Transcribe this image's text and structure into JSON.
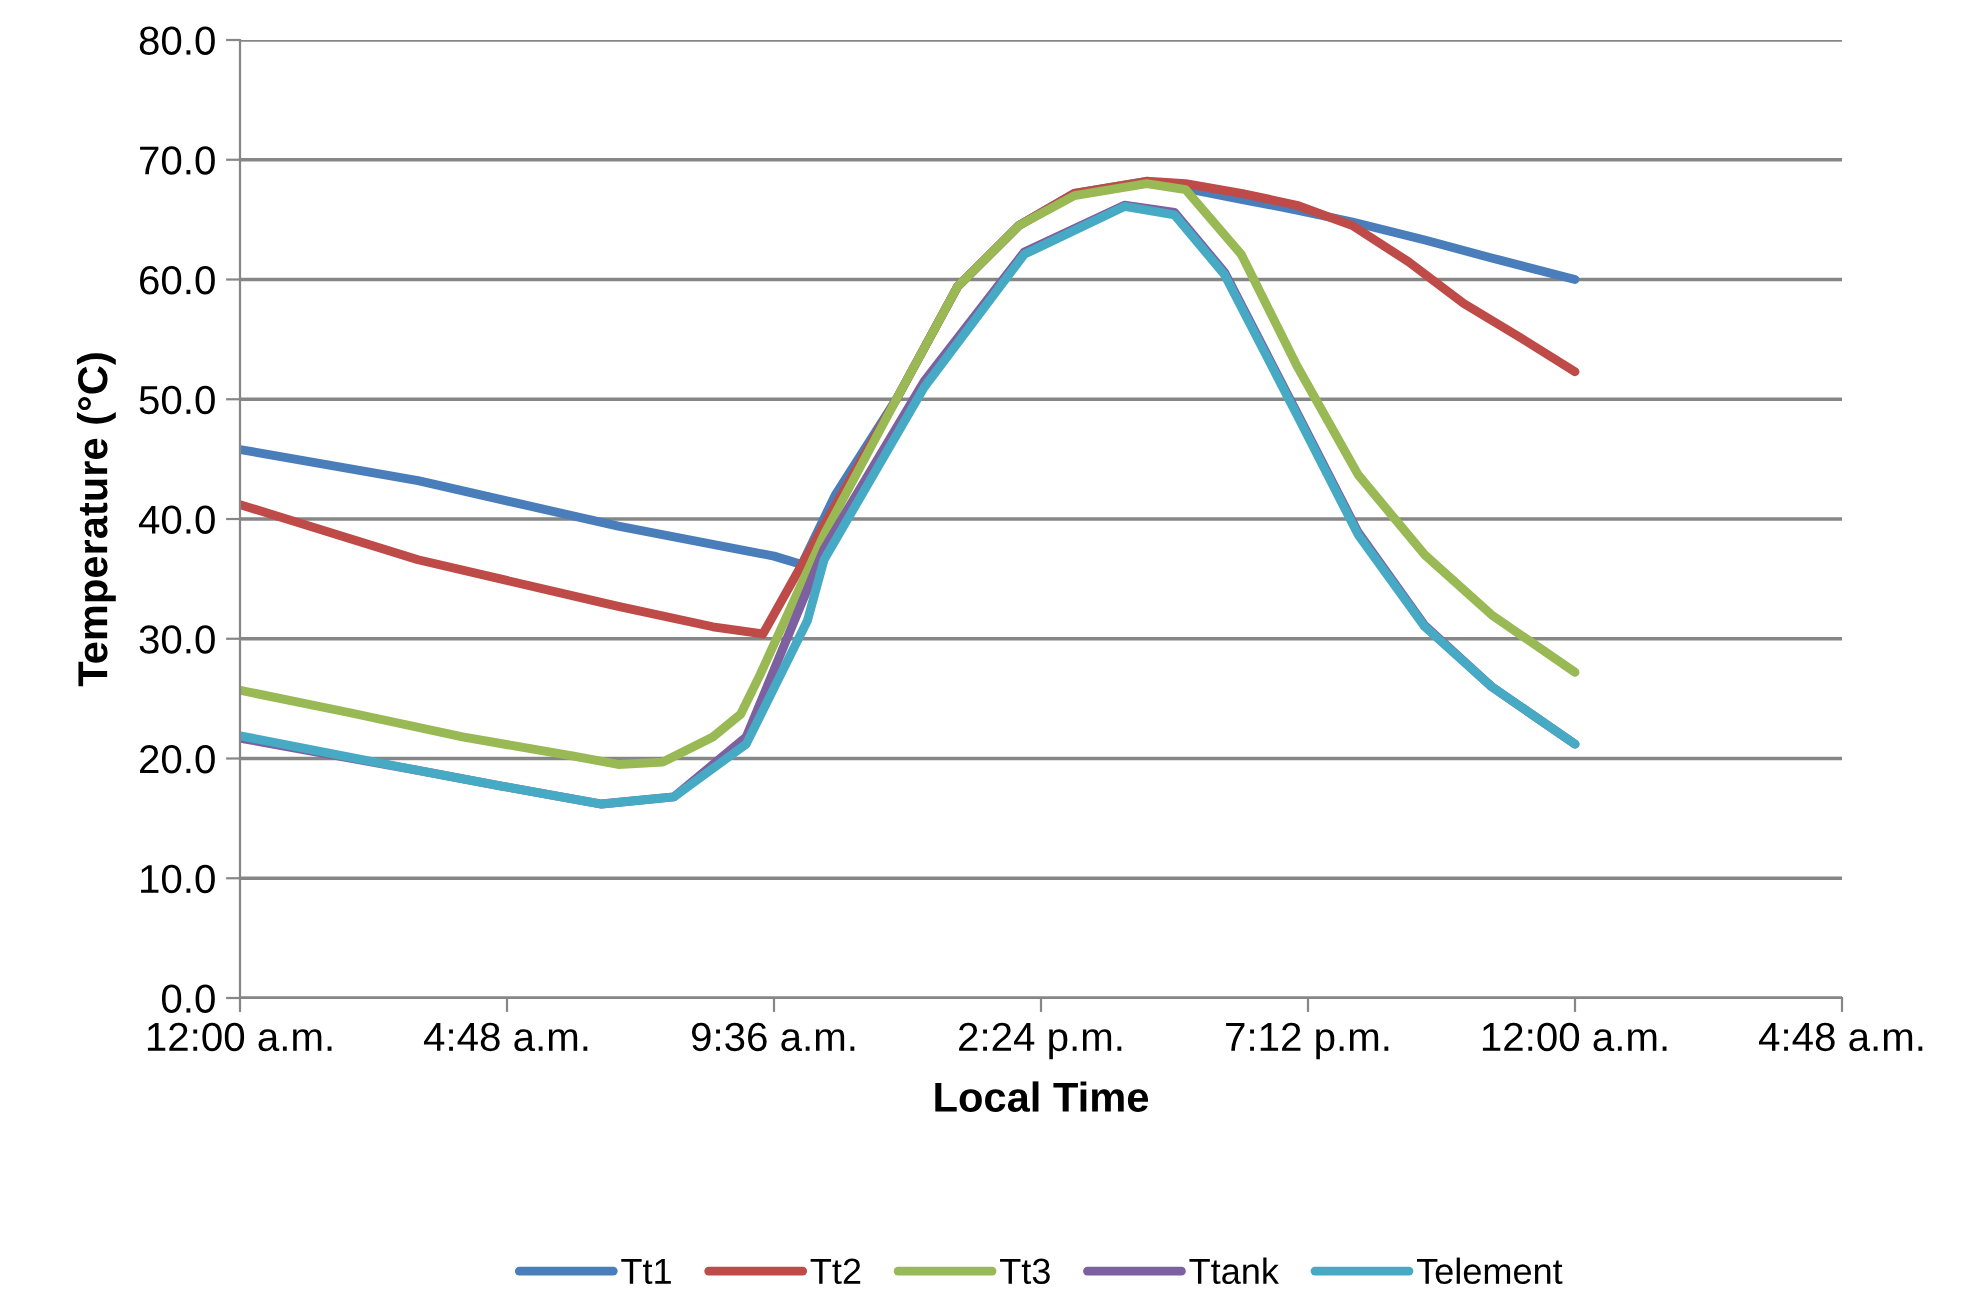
{
  "chart_data": {
    "type": "line",
    "xlabel": "Local Time",
    "ylabel": "Temperature (°C)",
    "xlim": [
      "2000-01-01T00:00",
      "2000-01-02T04:48"
    ],
    "ylim": [
      0,
      80
    ],
    "xticks": [
      {
        "value": "2000-01-01T00:00",
        "label": "12:00 a.m."
      },
      {
        "value": "2000-01-01T04:48",
        "label": "4:48 a.m."
      },
      {
        "value": "2000-01-01T09:36",
        "label": "9:36 a.m."
      },
      {
        "value": "2000-01-01T14:24",
        "label": "2:24 p.m."
      },
      {
        "value": "2000-01-01T19:12",
        "label": "7:12 p.m."
      },
      {
        "value": "2000-01-02T00:00",
        "label": "12:00 a.m."
      },
      {
        "value": "2000-01-02T04:48",
        "label": "4:48 a.m."
      }
    ],
    "yticks": [
      {
        "value": 0,
        "label": "0.0"
      },
      {
        "value": 10,
        "label": "10.0"
      },
      {
        "value": 20,
        "label": "20.0"
      },
      {
        "value": 30,
        "label": "30.0"
      },
      {
        "value": 40,
        "label": "40.0"
      },
      {
        "value": 50,
        "label": "50.0"
      },
      {
        "value": 60,
        "label": "60.0"
      },
      {
        "value": 70,
        "label": "70.0"
      },
      {
        "value": 80,
        "label": "80.0"
      }
    ],
    "grid": "y",
    "legend": "bottom",
    "marker": "none",
    "line_style": "solid",
    "series": [
      {
        "name": "Tt1",
        "color": "#4a7ebb",
        "x": [
          "2000-01-01T00:00",
          "2000-01-01T03:12",
          "2000-01-01T06:48",
          "2000-01-01T09:36",
          "2000-01-01T10:06",
          "2000-01-01T10:42",
          "2000-01-01T11:48",
          "2000-01-01T12:54",
          "2000-01-01T14:00",
          "2000-01-01T15:00",
          "2000-01-01T16:18",
          "2000-01-01T17:00",
          "2000-01-01T18:00",
          "2000-01-01T19:00",
          "2000-01-01T20:00",
          "2000-01-01T21:18",
          "2000-01-01T22:30",
          "2000-01-02T00:00"
        ],
        "values": [
          45.8,
          43.2,
          39.4,
          36.9,
          36.2,
          42,
          50,
          59.4,
          64.5,
          67.2,
          68.2,
          67.6,
          66.7,
          65.8,
          64.8,
          63.3,
          61.8,
          60
        ]
      },
      {
        "name": "Tt2",
        "color": "#be4b48",
        "x": [
          "2000-01-01T00:00",
          "2000-01-01T03:12",
          "2000-01-01T06:48",
          "2000-01-01T08:30",
          "2000-01-01T09:24",
          "2000-01-01T10:30",
          "2000-01-01T11:48",
          "2000-01-01T12:54",
          "2000-01-01T14:00",
          "2000-01-01T15:00",
          "2000-01-01T16:18",
          "2000-01-01T17:00",
          "2000-01-01T18:00",
          "2000-01-01T19:00",
          "2000-01-01T20:00",
          "2000-01-01T21:00",
          "2000-01-01T22:00",
          "2000-01-01T23:00",
          "2000-01-02T00:00"
        ],
        "values": [
          41.2,
          36.6,
          32.7,
          31,
          30.4,
          39.5,
          50,
          59.4,
          64.5,
          67.2,
          68.2,
          68,
          67.2,
          66.2,
          64.5,
          61.5,
          58,
          55.2,
          52.3
        ]
      },
      {
        "name": "Tt3",
        "color": "#98b954",
        "x": [
          "2000-01-01T00:00",
          "2000-01-01T02:00",
          "2000-01-01T04:00",
          "2000-01-01T06:00",
          "2000-01-01T06:48",
          "2000-01-01T07:36",
          "2000-01-01T08:30",
          "2000-01-01T09:00",
          "2000-01-01T09:21",
          "2000-01-01T10:30",
          "2000-01-01T11:48",
          "2000-01-01T12:54",
          "2000-01-01T14:00",
          "2000-01-01T15:00",
          "2000-01-01T16:18",
          "2000-01-01T17:00",
          "2000-01-01T18:00",
          "2000-01-01T19:00",
          "2000-01-01T20:06",
          "2000-01-01T21:18",
          "2000-01-01T22:30",
          "2000-01-02T00:00"
        ],
        "values": [
          25.7,
          23.8,
          21.8,
          20.2,
          19.5,
          19.7,
          21.8,
          23.7,
          27,
          38.7,
          50,
          59.4,
          64.5,
          67,
          68,
          67.5,
          62.1,
          52.8,
          43.7,
          37,
          32,
          27.2
        ]
      },
      {
        "name": "Ttank",
        "color": "#7d60a0",
        "x": [
          "2000-01-01T00:00",
          "2000-01-01T03:12",
          "2000-01-01T04:42",
          "2000-01-01T06:30",
          "2000-01-01T07:48",
          "2000-01-01T09:06",
          "2000-01-01T10:06",
          "2000-01-01T10:30",
          "2000-01-01T12:18",
          "2000-01-01T14:06",
          "2000-01-01T15:54",
          "2000-01-01T16:48",
          "2000-01-01T17:42",
          "2000-01-01T19:00",
          "2000-01-01T20:06",
          "2000-01-01T21:18",
          "2000-01-01T22:30",
          "2000-01-02T00:00"
        ],
        "values": [
          21.7,
          19,
          17.7,
          16.2,
          16.8,
          21.8,
          33,
          37.5,
          51.5,
          62.3,
          66.2,
          65.6,
          60.6,
          48.9,
          38.9,
          31.1,
          26,
          21.2
        ]
      },
      {
        "name": "Telement",
        "color": "#46aac5",
        "x": [
          "2000-01-01T00:00",
          "2000-01-01T03:12",
          "2000-01-01T04:42",
          "2000-01-01T06:30",
          "2000-01-01T07:48",
          "2000-01-01T09:06",
          "2000-01-01T10:12",
          "2000-01-01T10:30",
          "2000-01-01T12:18",
          "2000-01-01T14:06",
          "2000-01-01T15:54",
          "2000-01-01T16:48",
          "2000-01-01T17:42",
          "2000-01-01T19:00",
          "2000-01-01T20:06",
          "2000-01-01T21:18",
          "2000-01-01T22:30",
          "2000-01-02T00:00"
        ],
        "values": [
          21.9,
          19,
          17.7,
          16.2,
          16.8,
          21.2,
          31.5,
          36.6,
          51,
          62.1,
          66.1,
          65.4,
          60.4,
          48.7,
          38.7,
          31,
          26,
          21.2
        ]
      }
    ]
  }
}
